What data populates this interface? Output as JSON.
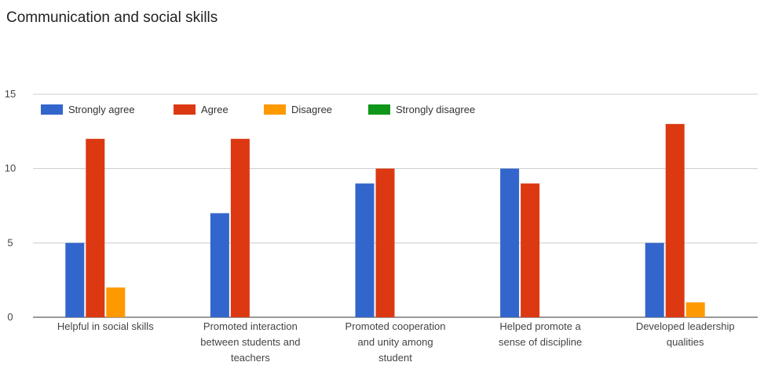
{
  "chart_data": {
    "type": "bar",
    "title": "Communication and social skills",
    "xlabel": "",
    "ylabel": "",
    "ylim": [
      0,
      15
    ],
    "yticks": [
      0,
      5,
      10,
      15
    ],
    "grid": true,
    "legend_position": "top-left",
    "categories": [
      [
        "Helpful in social skills"
      ],
      [
        "Promoted interaction",
        "between students and",
        "teachers"
      ],
      [
        "Promoted cooperation",
        "and unity among",
        "student"
      ],
      [
        "Helped promote a",
        "sense of discipline"
      ],
      [
        "Developed leadership",
        "qualities"
      ]
    ],
    "series": [
      {
        "name": "Strongly agree",
        "color": "#3366cc",
        "values": [
          5,
          7,
          9,
          10,
          5
        ]
      },
      {
        "name": "Agree",
        "color": "#dc3912",
        "values": [
          12,
          12,
          10,
          9,
          13
        ]
      },
      {
        "name": "Disagree",
        "color": "#ff9900",
        "values": [
          2,
          0,
          0,
          0,
          1
        ]
      },
      {
        "name": "Strongly disagree",
        "color": "#109618",
        "values": [
          0,
          0,
          0,
          0,
          0
        ]
      }
    ]
  }
}
